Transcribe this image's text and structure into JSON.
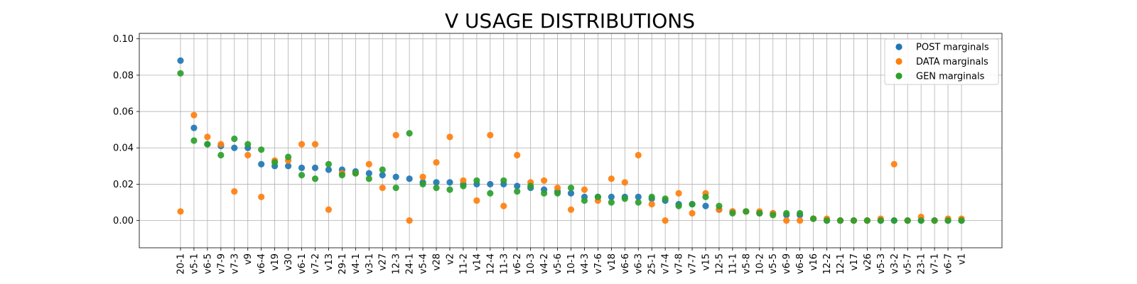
{
  "chart_data": {
    "type": "scatter",
    "title": "V USAGE DISTRIBUTIONS",
    "xlabel": "",
    "ylabel": "",
    "ylim": [
      -0.015,
      0.103
    ],
    "yticks": [
      0.0,
      0.02,
      0.04,
      0.06,
      0.08,
      0.1
    ],
    "ytick_labels": [
      "0.00",
      "0.02",
      "0.04",
      "0.06",
      "0.08",
      "0.10"
    ],
    "grid": true,
    "legend_position": "top-right",
    "categories": [
      "20-1",
      "v5-1",
      "v6-5",
      "v7-9",
      "v7-3",
      "v9",
      "v6-4",
      "v19",
      "v30",
      "v6-1",
      "v7-2",
      "v13",
      "29-1",
      "v4-1",
      "v3-1",
      "v27",
      "12-3",
      "24-1",
      "v5-4",
      "v28",
      "v2",
      "11-2",
      "v14",
      "12-4",
      "11-3",
      "v6-2",
      "10-3",
      "v4-2",
      "v5-6",
      "10-1",
      "v4-3",
      "v7-6",
      "v18",
      "v6-6",
      "v6-3",
      "25-1",
      "v7-4",
      "v7-8",
      "v7-7",
      "v15",
      "12-5",
      "11-1",
      "v5-8",
      "10-2",
      "v5-5",
      "v6-9",
      "v6-8",
      "v16",
      "12-2",
      "12-1",
      "v17",
      "v26",
      "v5-3",
      "v3-2",
      "v5-7",
      "23-1",
      "v7-1",
      "v6-7",
      "v1"
    ],
    "series": [
      {
        "name": "POST marginals",
        "color": "#1f77b4",
        "values": [
          0.088,
          0.051,
          0.042,
          0.041,
          0.04,
          0.04,
          0.031,
          0.03,
          0.03,
          0.029,
          0.029,
          0.028,
          0.028,
          0.027,
          0.026,
          0.025,
          0.024,
          0.023,
          0.021,
          0.021,
          0.021,
          0.02,
          0.02,
          0.02,
          0.02,
          0.019,
          0.018,
          0.017,
          0.016,
          0.015,
          0.013,
          0.013,
          0.013,
          0.013,
          0.013,
          0.012,
          0.011,
          0.009,
          0.009,
          0.008,
          0.006,
          0.005,
          0.005,
          0.004,
          0.004,
          0.003,
          0.003,
          0.001,
          0.0,
          0.0,
          0.0,
          0.0,
          0.0,
          0.0,
          0.0,
          0.0,
          0.0,
          0.0,
          0.0
        ]
      },
      {
        "name": "DATA marginals",
        "color": "#ff7f0e",
        "values": [
          0.005,
          0.058,
          0.046,
          0.042,
          0.016,
          0.036,
          0.013,
          0.033,
          0.033,
          0.042,
          0.042,
          0.006,
          0.026,
          0.026,
          0.031,
          0.018,
          0.047,
          0.0,
          0.024,
          0.032,
          0.046,
          0.022,
          0.011,
          0.047,
          0.008,
          0.036,
          0.021,
          0.022,
          0.018,
          0.006,
          0.017,
          0.011,
          0.023,
          0.021,
          0.036,
          0.009,
          0.0,
          0.015,
          0.004,
          0.015,
          0.006,
          0.005,
          0.005,
          0.005,
          0.004,
          0.0,
          0.0,
          0.001,
          0.001,
          0.0,
          0.0,
          0.0,
          0.001,
          0.031,
          0.0,
          0.002,
          0.0,
          0.001,
          0.001
        ]
      },
      {
        "name": "GEN marginals",
        "color": "#2ca02c",
        "values": [
          0.081,
          0.044,
          0.042,
          0.036,
          0.045,
          0.042,
          0.039,
          0.032,
          0.035,
          0.025,
          0.023,
          0.031,
          0.025,
          0.026,
          0.023,
          0.028,
          0.018,
          0.048,
          0.02,
          0.018,
          0.017,
          0.019,
          0.022,
          0.015,
          0.022,
          0.016,
          0.019,
          0.015,
          0.015,
          0.018,
          0.011,
          0.013,
          0.01,
          0.012,
          0.01,
          0.013,
          0.012,
          0.008,
          0.009,
          0.013,
          0.008,
          0.004,
          0.005,
          0.004,
          0.003,
          0.004,
          0.004,
          0.001,
          0.0,
          0.0,
          0.0,
          0.0,
          0.0,
          0.0,
          0.0,
          0.0,
          0.0,
          0.0,
          0.0
        ]
      }
    ]
  }
}
